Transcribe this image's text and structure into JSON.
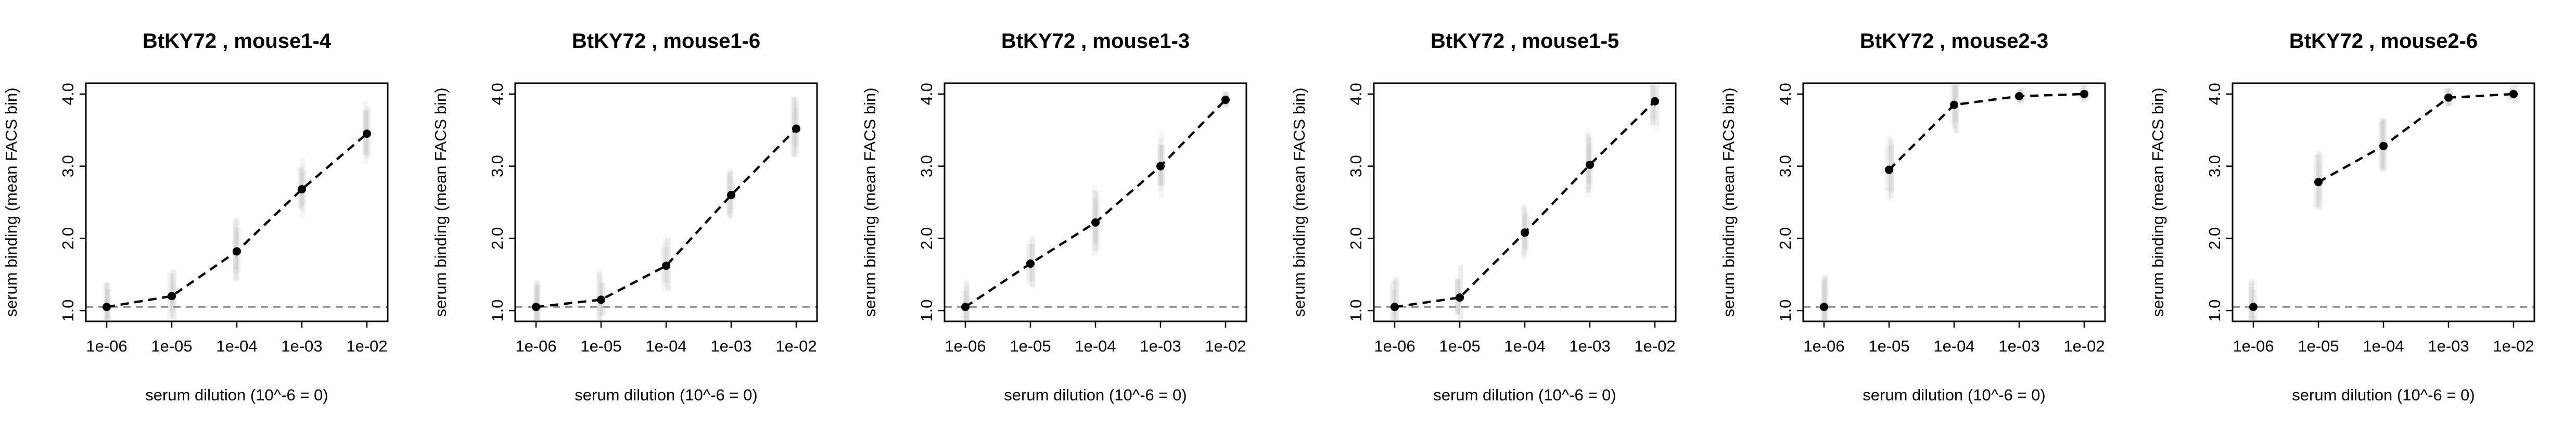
{
  "chart_data": [
    {
      "type": "line",
      "title": "BtKY72 , mouse1-4",
      "xlabel": "serum dilution (10^-6 = 0)",
      "ylabel": "serum binding (mean FACS bin)",
      "log_x": true,
      "x": [
        1e-06,
        1e-05,
        0.0001,
        0.001,
        0.01
      ],
      "x_tick_labels": [
        "1e-06",
        "1e-05",
        "1e-04",
        "1e-03",
        "1e-02"
      ],
      "y_tick_labels": [
        "1.0",
        "2.0",
        "3.0",
        "4.0"
      ],
      "y_ticks": [
        1,
        2,
        3,
        4
      ],
      "ylim": [
        0.85,
        4.15
      ],
      "values": [
        1.05,
        1.2,
        1.82,
        2.68,
        3.45
      ],
      "baseline": 1.05
    },
    {
      "type": "line",
      "title": "BtKY72 , mouse1-6",
      "xlabel": "serum dilution (10^-6 = 0)",
      "ylabel": "serum binding (mean FACS bin)",
      "log_x": true,
      "x": [
        1e-06,
        1e-05,
        0.0001,
        0.001,
        0.01
      ],
      "x_tick_labels": [
        "1e-06",
        "1e-05",
        "1e-04",
        "1e-03",
        "1e-02"
      ],
      "y_tick_labels": [
        "1.0",
        "2.0",
        "3.0",
        "4.0"
      ],
      "y_ticks": [
        1,
        2,
        3,
        4
      ],
      "ylim": [
        0.85,
        4.15
      ],
      "values": [
        1.05,
        1.15,
        1.62,
        2.6,
        3.52
      ],
      "baseline": 1.05
    },
    {
      "type": "line",
      "title": "BtKY72 , mouse1-3",
      "xlabel": "serum dilution (10^-6 = 0)",
      "ylabel": "serum binding (mean FACS bin)",
      "log_x": true,
      "x": [
        1e-06,
        1e-05,
        0.0001,
        0.001,
        0.01
      ],
      "x_tick_labels": [
        "1e-06",
        "1e-05",
        "1e-04",
        "1e-03",
        "1e-02"
      ],
      "y_tick_labels": [
        "1.0",
        "2.0",
        "3.0",
        "4.0"
      ],
      "y_ticks": [
        1,
        2,
        3,
        4
      ],
      "ylim": [
        0.85,
        4.15
      ],
      "values": [
        1.05,
        1.65,
        2.22,
        3.0,
        3.92
      ],
      "baseline": 1.05
    },
    {
      "type": "line",
      "title": "BtKY72 , mouse1-5",
      "xlabel": "serum dilution (10^-6 = 0)",
      "ylabel": "serum binding (mean FACS bin)",
      "log_x": true,
      "x": [
        1e-06,
        1e-05,
        0.0001,
        0.001,
        0.01
      ],
      "x_tick_labels": [
        "1e-06",
        "1e-05",
        "1e-04",
        "1e-03",
        "1e-02"
      ],
      "y_tick_labels": [
        "1.0",
        "2.0",
        "3.0",
        "4.0"
      ],
      "y_ticks": [
        1,
        2,
        3,
        4
      ],
      "ylim": [
        0.85,
        4.15
      ],
      "values": [
        1.05,
        1.18,
        2.08,
        3.02,
        3.9
      ],
      "baseline": 1.05
    },
    {
      "type": "line",
      "title": "BtKY72 , mouse2-3",
      "xlabel": "serum dilution (10^-6 = 0)",
      "ylabel": "serum binding (mean FACS bin)",
      "log_x": true,
      "x": [
        1e-06,
        1e-05,
        0.0001,
        0.001,
        0.01
      ],
      "x_tick_labels": [
        "1e-06",
        "1e-05",
        "1e-04",
        "1e-03",
        "1e-02"
      ],
      "y_tick_labels": [
        "1.0",
        "2.0",
        "3.0",
        "4.0"
      ],
      "y_ticks": [
        1,
        2,
        3,
        4
      ],
      "ylim": [
        0.85,
        4.15
      ],
      "values": [
        null,
        2.95,
        3.85,
        3.97,
        4.0
      ],
      "first_point": 1.05,
      "baseline": 1.05
    },
    {
      "type": "line",
      "title": "BtKY72 , mouse2-6",
      "xlabel": "serum dilution (10^-6 = 0)",
      "ylabel": "serum binding (mean FACS bin)",
      "log_x": true,
      "x": [
        1e-06,
        1e-05,
        0.0001,
        0.001,
        0.01
      ],
      "x_tick_labels": [
        "1e-06",
        "1e-05",
        "1e-04",
        "1e-03",
        "1e-02"
      ],
      "y_tick_labels": [
        "1.0",
        "2.0",
        "3.0",
        "4.0"
      ],
      "y_ticks": [
        1,
        2,
        3,
        4
      ],
      "ylim": [
        0.85,
        4.15
      ],
      "values": [
        null,
        2.78,
        3.28,
        3.95,
        4.0
      ],
      "first_point": 1.05,
      "baseline": 1.05
    }
  ],
  "colors": {
    "line": "#000000",
    "baseline": "#888888",
    "distribution": "#9a9a9a"
  }
}
